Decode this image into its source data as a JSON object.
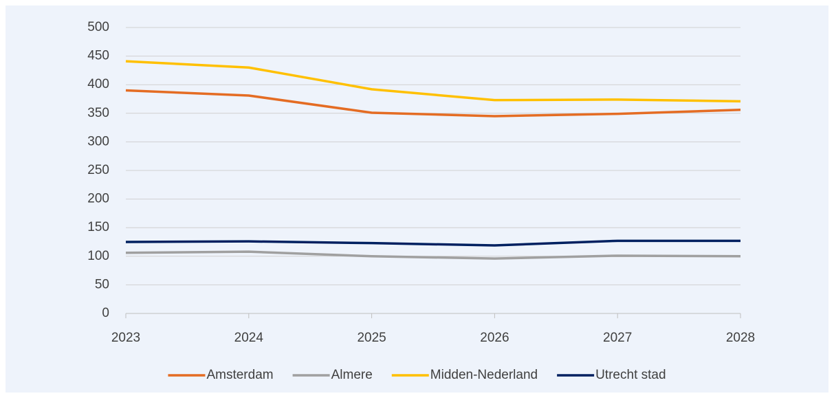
{
  "chart_data": {
    "type": "line",
    "x": [
      2023,
      2024,
      2025,
      2026,
      2027,
      2028
    ],
    "xlim": [
      2023,
      2028
    ],
    "xticks": [
      2023,
      2024,
      2025,
      2026,
      2027,
      2028
    ],
    "ylim": [
      0,
      500
    ],
    "yticks": [
      0,
      50,
      100,
      150,
      200,
      250,
      300,
      350,
      400,
      450,
      500
    ],
    "grid": true,
    "legend": "bottom",
    "series": [
      {
        "name": "Amsterdam",
        "color": "#e46c23",
        "values": [
          390,
          381,
          351,
          345,
          349,
          356
        ]
      },
      {
        "name": "Almere",
        "color": "#a0a0a0",
        "values": [
          106,
          108,
          100,
          96,
          101,
          100
        ]
      },
      {
        "name": "Midden-Nederland",
        "color": "#ffc000",
        "values": [
          441,
          430,
          392,
          373,
          374,
          371
        ]
      },
      {
        "name": "Utrecht stad",
        "color": "#002060",
        "values": [
          125,
          126,
          123,
          119,
          127,
          127
        ]
      }
    ]
  }
}
